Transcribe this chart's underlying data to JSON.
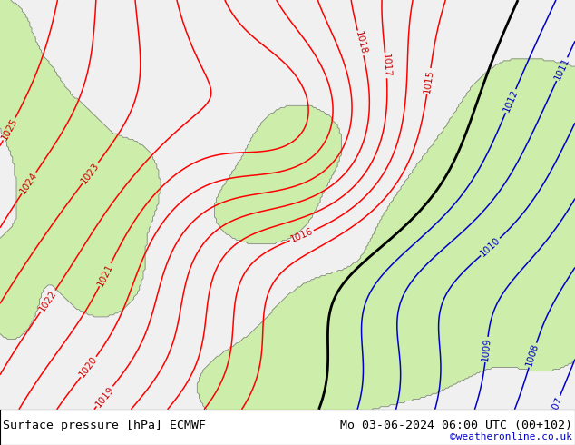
{
  "title_left": "Surface pressure [hPa] ECMWF",
  "title_right": "Mo 03-06-2024 06:00 UTC (00+102)",
  "credit": "©weatheronline.co.uk",
  "bg_color": "#e8e8e8",
  "land_color": "#cceeaa",
  "sea_color": "#e0e0e0",
  "contour_color_red": "#ff0000",
  "contour_color_blue": "#0000cc",
  "contour_color_black": "#000000",
  "label_color_red": "#cc0000",
  "label_color_blue": "#0000cc",
  "bottom_bar_color": "#f0f0f0",
  "font_size_title": 9.5,
  "font_size_credit": 8,
  "fig_width": 6.34,
  "fig_height": 4.9,
  "dpi": 100
}
